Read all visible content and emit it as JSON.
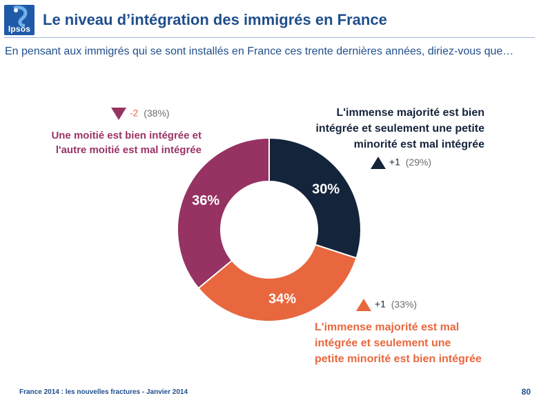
{
  "header": {
    "logo_text": "Ipsos",
    "title": "Le niveau d’intégration des immigrés en France",
    "subtitle": "En pensant aux immigrés qui se sont installés en France ces trente dernières années, diriez-vous que…"
  },
  "colors": {
    "navy": "#13243b",
    "orange": "#e8673e",
    "purple": "#963363",
    "brand_blue": "#1f5aa8"
  },
  "chart_data": {
    "type": "pie",
    "title": "",
    "slices": [
      {
        "label_lines": [
          "L'immense majorité est bien",
          "intégrée et seulement une petite",
          "minorité est mal intégrée"
        ],
        "value": 30,
        "value_label": "30%",
        "color": "#13243b",
        "trend_direction": "up",
        "trend_delta": "+1",
        "trend_previous": "(29%)"
      },
      {
        "label_lines": [
          "L'immense majorité est mal",
          "intégrée et seulement une",
          "petite minorité est bien intégrée"
        ],
        "value": 34,
        "value_label": "34%",
        "color": "#e8673e",
        "trend_direction": "up",
        "trend_delta": "+1",
        "trend_previous": "(33%)"
      },
      {
        "label_lines": [
          "Une moitié est bien intégrée et",
          "l'autre moitié est mal intégrée"
        ],
        "value": 36,
        "value_label": "36%",
        "color": "#963363",
        "trend_direction": "down",
        "trend_delta": "-2",
        "trend_previous": "(38%)"
      }
    ]
  },
  "footer": {
    "source": "France 2014 : les nouvelles fractures - Janvier 2014",
    "page_number": "80"
  }
}
